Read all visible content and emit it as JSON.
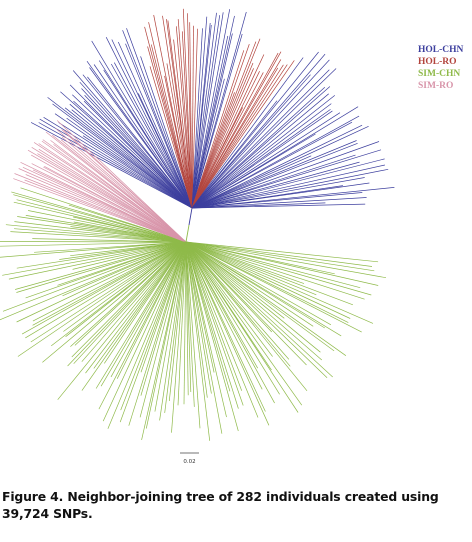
{
  "figure": {
    "legend": [
      {
        "label": "HOL-CHN",
        "color": "#3d3f9e"
      },
      {
        "label": "HOL-RO",
        "color": "#b2443d"
      },
      {
        "label": "SIM-CHN",
        "color": "#8fba4a"
      },
      {
        "label": "SIM-RO",
        "color": "#d895aa"
      }
    ],
    "scale_bar_label": "0.02",
    "caption": "Figure 4. Neighbor-joining tree of 282 individuals created using 39,724 SNPs."
  }
}
